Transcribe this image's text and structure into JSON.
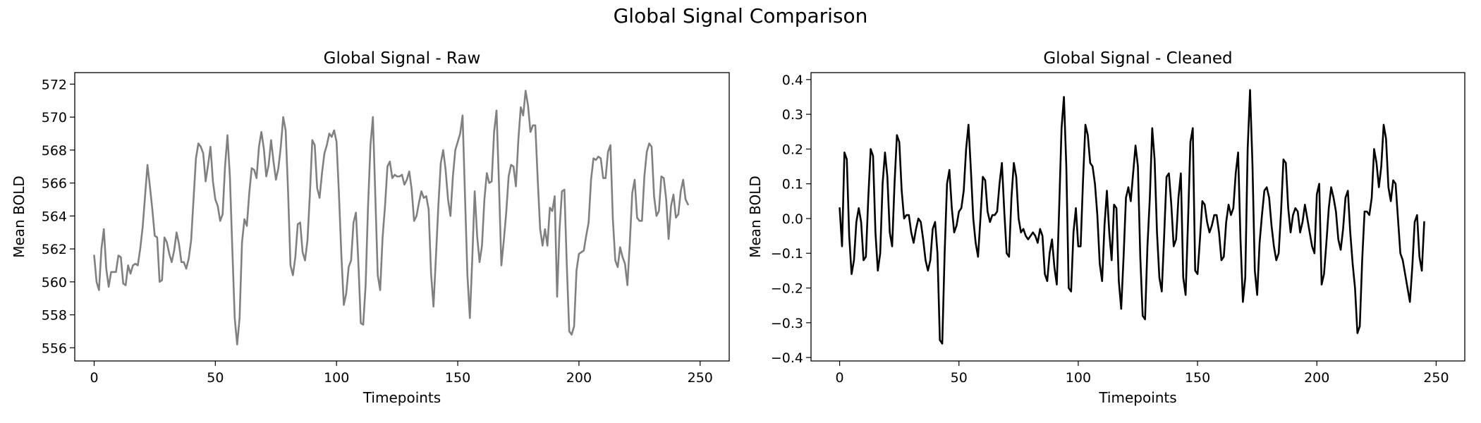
{
  "figure": {
    "title": "Global Signal Comparison"
  },
  "chart_data": [
    {
      "type": "line",
      "title": "Global Signal - Raw",
      "xlabel": "Timepoints",
      "ylabel": "Mean BOLD",
      "xlim": [
        -8,
        262
      ],
      "ylim": [
        555.2,
        572.7
      ],
      "xticks": [
        0,
        50,
        100,
        150,
        200,
        250
      ],
      "yticks": [
        556,
        558,
        560,
        562,
        564,
        566,
        568,
        570,
        572
      ],
      "ytick_labels": [
        "556",
        "558",
        "560",
        "562",
        "564",
        "566",
        "568",
        "570",
        "572"
      ],
      "line_color": "#808080",
      "series": [
        {
          "name": "raw",
          "x_start": 0,
          "x_step": 1,
          "values": [
            561.6,
            560.0,
            559.5,
            562.0,
            563.2,
            560.8,
            559.7,
            560.6,
            560.6,
            560.6,
            561.6,
            561.5,
            559.9,
            559.8,
            561.0,
            560.5,
            561.0,
            561.1,
            561.0,
            562.0,
            563.3,
            565.2,
            567.1,
            565.8,
            564.4,
            562.8,
            562.7,
            560.0,
            560.1,
            562.7,
            562.4,
            561.7,
            561.2,
            561.9,
            563.0,
            562.3,
            561.2,
            561.2,
            560.8,
            561.4,
            562.5,
            565.0,
            567.5,
            568.4,
            568.2,
            567.8,
            566.1,
            567.1,
            568.2,
            566.1,
            565.0,
            564.6,
            563.7,
            564.1,
            567.0,
            568.9,
            566.4,
            562.0,
            557.8,
            556.2,
            557.8,
            562.4,
            563.8,
            563.4,
            565.4,
            566.9,
            566.8,
            566.3,
            568.2,
            569.1,
            568.1,
            566.4,
            567.1,
            568.6,
            567.3,
            566.2,
            566.9,
            568.2,
            570.0,
            569.2,
            565.5,
            561.0,
            560.4,
            561.5,
            563.5,
            563.6,
            561.8,
            561.3,
            562.5,
            565.3,
            568.6,
            568.3,
            565.7,
            565.1,
            566.6,
            567.8,
            568.3,
            569.0,
            568.8,
            569.2,
            568.5,
            565.3,
            561.6,
            558.6,
            559.3,
            560.9,
            561.3,
            563.6,
            564.2,
            561.2,
            557.5,
            557.4,
            559.8,
            564.6,
            568.3,
            570.0,
            565.2,
            560.4,
            559.5,
            562.7,
            564.6,
            567.0,
            567.3,
            566.3,
            566.5,
            566.4,
            566.4,
            566.5,
            565.9,
            566.2,
            566.7,
            565.6,
            563.7,
            564.0,
            564.8,
            565.5,
            565.1,
            565.2,
            564.4,
            560.5,
            558.5,
            561.5,
            564.6,
            567.2,
            568.0,
            566.8,
            565.0,
            564.0,
            566.4,
            568.0,
            568.5,
            569.0,
            570.1,
            565.2,
            560.4,
            557.8,
            561.4,
            565.5,
            562.8,
            561.2,
            562.2,
            565.0,
            566.6,
            566.0,
            566.1,
            569.1,
            570.4,
            566.0,
            561.0,
            562.5,
            564.2,
            566.4,
            567.1,
            567.0,
            565.8,
            568.6,
            570.6,
            570.1,
            571.6,
            570.7,
            569.1,
            569.5,
            569.5,
            566.2,
            563.2,
            562.2,
            563.2,
            562.2,
            564.5,
            564.3,
            565.2,
            559.1,
            563.2,
            565.5,
            565.6,
            561.0,
            557.0,
            556.8,
            557.3,
            560.7,
            561.7,
            561.8,
            561.9,
            562.8,
            563.6,
            566.2,
            567.5,
            567.4,
            567.6,
            567.5,
            566.3,
            566.3,
            567.9,
            568.3,
            563.8,
            561.3,
            560.9,
            562.1,
            561.5,
            561.1,
            559.8,
            562.4,
            565.4,
            566.2,
            563.9,
            563.7,
            563.7,
            566.4,
            567.9,
            568.4,
            568.2,
            565.2,
            564.0,
            564.3,
            566.4,
            566.3,
            565.0,
            562.6,
            564.6,
            565.3,
            563.9,
            564.1,
            565.5,
            566.2,
            565.0,
            564.7
          ]
        }
      ]
    },
    {
      "type": "line",
      "title": "Global Signal - Cleaned",
      "xlabel": "Timepoints",
      "ylabel": "Mean BOLD",
      "xlim": [
        -12,
        262
      ],
      "ylim": [
        -0.41,
        0.42
      ],
      "xticks": [
        0,
        50,
        100,
        150,
        200,
        250
      ],
      "yticks": [
        -0.4,
        -0.3,
        -0.2,
        -0.1,
        0.0,
        0.1,
        0.2,
        0.3,
        0.4
      ],
      "ytick_labels": [
        "−0.4",
        "−0.3",
        "−0.2",
        "−0.1",
        "0.0",
        "0.1",
        "0.2",
        "0.3",
        "0.4"
      ],
      "line_color": "#000000",
      "series": [
        {
          "name": "cleaned",
          "x_start": 0,
          "x_step": 1,
          "values": [
            0.03,
            -0.08,
            0.19,
            0.17,
            -0.05,
            -0.16,
            -0.12,
            -0.01,
            0.03,
            -0.01,
            -0.12,
            -0.11,
            0.06,
            0.2,
            0.18,
            -0.04,
            -0.15,
            -0.1,
            0.1,
            0.19,
            0.12,
            -0.04,
            -0.08,
            0.1,
            0.24,
            0.22,
            0.08,
            0.0,
            0.01,
            0.01,
            -0.04,
            -0.07,
            -0.03,
            0.0,
            -0.01,
            -0.06,
            -0.12,
            -0.15,
            -0.12,
            -0.03,
            -0.01,
            -0.1,
            -0.35,
            -0.36,
            -0.1,
            0.1,
            0.14,
            0.03,
            -0.04,
            -0.02,
            0.02,
            0.03,
            0.08,
            0.2,
            0.27,
            0.14,
            0.0,
            -0.07,
            -0.11,
            0.0,
            0.12,
            0.11,
            0.02,
            -0.01,
            0.01,
            0.01,
            0.02,
            0.1,
            0.16,
            0.02,
            -0.1,
            -0.11,
            0.06,
            0.16,
            0.12,
            0.0,
            -0.04,
            -0.03,
            -0.05,
            -0.06,
            -0.05,
            -0.04,
            -0.05,
            -0.07,
            -0.03,
            -0.05,
            -0.16,
            -0.18,
            -0.1,
            -0.06,
            -0.14,
            -0.19,
            0.03,
            0.26,
            0.35,
            0.15,
            -0.2,
            -0.21,
            -0.04,
            0.03,
            -0.08,
            -0.08,
            0.11,
            0.27,
            0.24,
            0.16,
            0.15,
            0.1,
            0.01,
            -0.13,
            -0.18,
            -0.02,
            0.08,
            -0.04,
            -0.12,
            0.04,
            0.03,
            -0.18,
            -0.26,
            -0.11,
            0.06,
            0.09,
            0.05,
            0.13,
            0.21,
            0.15,
            -0.11,
            -0.28,
            -0.29,
            -0.08,
            0.06,
            0.26,
            0.17,
            -0.04,
            -0.17,
            -0.21,
            -0.05,
            0.12,
            0.13,
            0.04,
            -0.08,
            -0.06,
            0.06,
            0.13,
            -0.17,
            -0.22,
            -0.01,
            0.22,
            0.26,
            -0.15,
            -0.16,
            -0.06,
            0.05,
            0.04,
            -0.01,
            -0.04,
            -0.02,
            0.01,
            0.01,
            -0.04,
            -0.12,
            -0.11,
            -0.01,
            0.04,
            0.01,
            0.03,
            0.13,
            0.19,
            -0.06,
            -0.24,
            -0.17,
            0.2,
            0.37,
            0.16,
            -0.15,
            -0.22,
            -0.07,
            0.01,
            0.08,
            0.09,
            0.06,
            -0.02,
            -0.08,
            -0.12,
            -0.1,
            0.02,
            0.17,
            0.16,
            0.03,
            -0.04,
            0.01,
            0.03,
            0.02,
            -0.04,
            -0.01,
            0.04,
            0.0,
            -0.04,
            -0.08,
            -0.1,
            0.07,
            0.1,
            -0.19,
            -0.16,
            -0.07,
            0.03,
            0.09,
            0.06,
            0.02,
            -0.06,
            -0.09,
            -0.03,
            0.06,
            0.08,
            -0.04,
            -0.13,
            -0.2,
            -0.33,
            -0.31,
            -0.12,
            0.02,
            0.02,
            0.01,
            0.06,
            0.2,
            0.16,
            0.09,
            0.15,
            0.27,
            0.23,
            0.09,
            0.05,
            0.11,
            0.1,
            0.0,
            -0.1,
            -0.12,
            -0.16,
            -0.2,
            -0.24,
            -0.14,
            -0.01,
            0.01,
            -0.11,
            -0.15,
            -0.01
          ]
        }
      ]
    }
  ]
}
